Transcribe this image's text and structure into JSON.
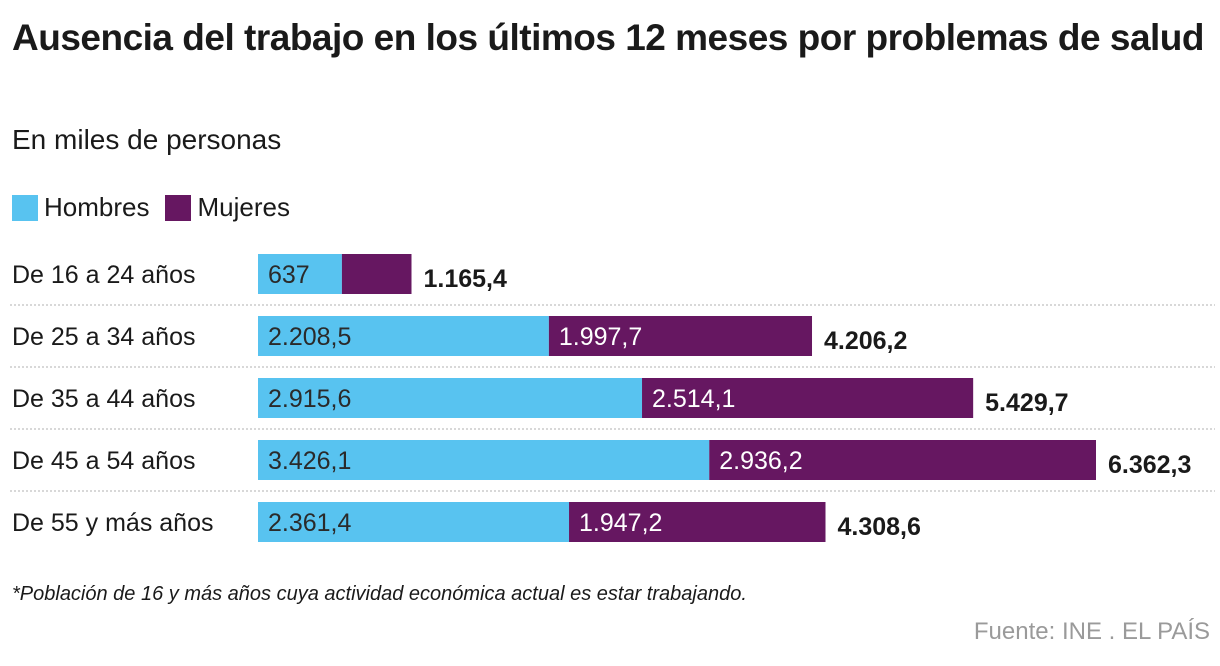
{
  "header": {
    "title": "Ausencia del trabajo en los últimos 12 meses por problemas de salud",
    "subtitle": "En miles de personas"
  },
  "legend": [
    {
      "label": "Hombres",
      "color": "#58c3f0"
    },
    {
      "label": "Mujeres",
      "color": "#661761"
    }
  ],
  "footer": {
    "note": "*Población de 16 y más años cuya actividad económica actual es estar trabajando.",
    "source": "Fuente: INE . EL PAÍS"
  },
  "chart_data": {
    "type": "bar",
    "orientation": "horizontal",
    "stacked": true,
    "title": "Ausencia del trabajo en los últimos 12 meses por problemas de salud",
    "subtitle": "En miles de personas",
    "categories": [
      "De 16 a 24 años",
      "De 25 a 34 años",
      "De 35 a 44 años",
      "De 45 a 54 años",
      "De 55 y más años"
    ],
    "series": [
      {
        "name": "Hombres",
        "color": "#58c3f0",
        "values": [
          637,
          2208.5,
          2915.6,
          3426.1,
          2361.4
        ],
        "labels": [
          "637",
          "2.208,5",
          "2.915,6",
          "3.426,1",
          "2.361,4"
        ]
      },
      {
        "name": "Mujeres",
        "color": "#661761",
        "values": [
          528.4,
          1997.7,
          2514.1,
          2936.2,
          1947.2
        ],
        "labels": [
          "",
          "1.997,7",
          "2.514,1",
          "2.936,2",
          "1.947,2"
        ]
      }
    ],
    "totals": [
      1165.4,
      4206.2,
      5429.7,
      6362.3,
      4308.6
    ],
    "total_labels": [
      "1.165,4",
      "4.206,2",
      "5.429,7",
      "6.362,3",
      "4.308,6"
    ],
    "xlabel": "",
    "ylabel": "",
    "xlim": [
      0,
      6362.3
    ],
    "grid": false,
    "legend_position": "top-left"
  }
}
